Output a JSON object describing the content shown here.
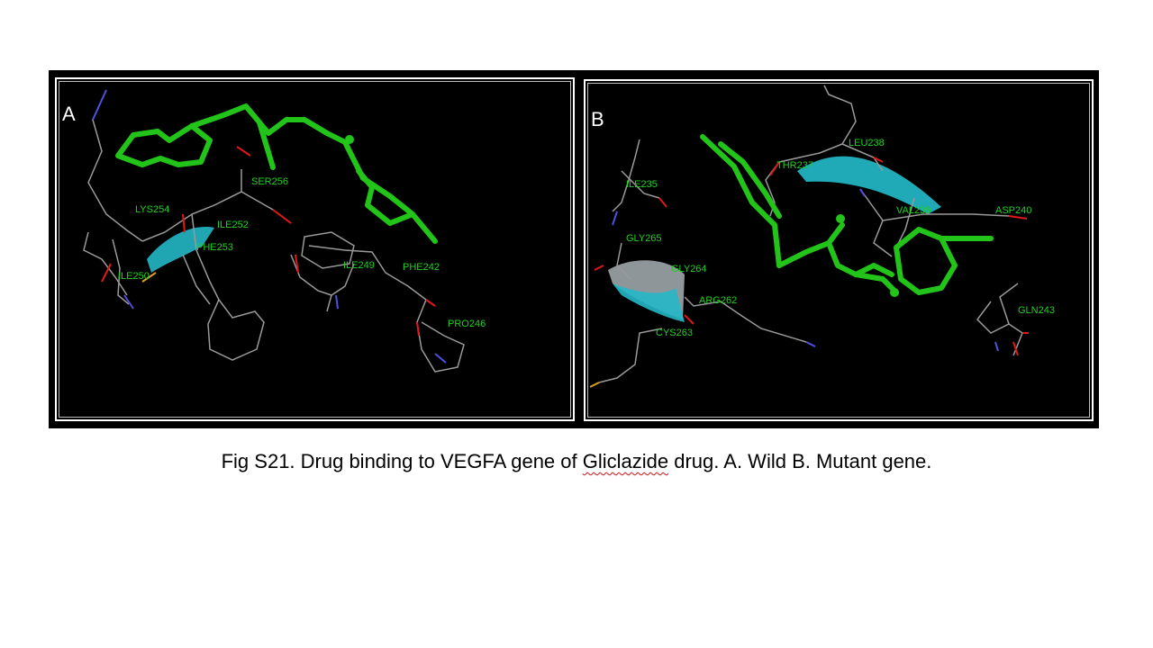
{
  "panels": {
    "a": {
      "letter": "A",
      "residues": [
        "SER256",
        "LYS254",
        "ILE252",
        "PHE253",
        "ILE250",
        "ILE249",
        "PHE242",
        "PRO246"
      ]
    },
    "b": {
      "letter": "B",
      "residues": [
        "LEU238",
        "THR237",
        "ILE235",
        "VAL239",
        "ASP240",
        "GLY265",
        "GLY264",
        "ARG262",
        "CYS263",
        "GLN243"
      ]
    }
  },
  "colors": {
    "ligand": "#22c41a",
    "label": "#20d020",
    "backbone": "#9a9a9a",
    "ribbon": "#23b7c6",
    "nitrogen": "#5050e0",
    "oxygen": "#e01818",
    "sulfur": "#d9a020"
  },
  "caption": {
    "before": "Fig S21. Drug binding  to VEGFA gene of ",
    "drug_name": "Gliclazide",
    "after": " drug. A. Wild B. Mutant gene."
  }
}
